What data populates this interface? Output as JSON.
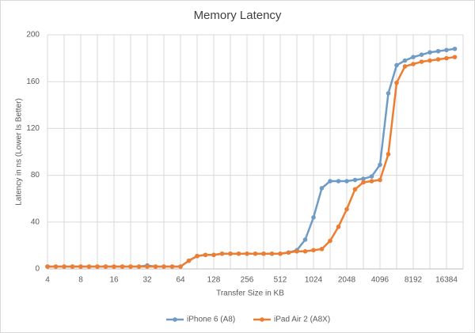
{
  "chart_data": {
    "type": "line",
    "title": "Memory Latency",
    "x_label": "Transfer Size in KB",
    "y_label": "Latency in ns (Lower Is Better)",
    "categories": [
      4,
      null,
      null,
      null,
      8,
      null,
      null,
      null,
      16,
      null,
      null,
      null,
      32,
      null,
      null,
      null,
      64,
      null,
      null,
      null,
      128,
      null,
      null,
      null,
      256,
      null,
      null,
      null,
      512,
      null,
      null,
      null,
      1024,
      null,
      null,
      null,
      2048,
      null,
      null,
      null,
      4096,
      null,
      null,
      null,
      8192,
      null,
      null,
      null,
      16384,
      null
    ],
    "ylim": [
      0,
      200
    ],
    "yticks": [
      0,
      40,
      80,
      120,
      160,
      200
    ],
    "grid": true,
    "legend": "bottom",
    "series": [
      {
        "name": "iPhone 6 (A8)",
        "color": "#6f9cc6",
        "values": [
          2,
          2,
          2,
          2,
          2,
          2,
          2,
          2,
          2,
          2,
          2,
          2,
          3,
          2,
          2,
          2,
          2,
          7,
          11,
          12,
          12,
          13,
          13,
          13,
          13,
          13,
          13,
          13,
          13,
          14,
          16,
          25,
          44,
          69,
          75,
          75,
          75,
          76,
          77,
          79,
          89,
          150,
          174,
          178,
          181,
          183,
          185,
          186,
          187,
          188
        ]
      },
      {
        "name": "iPad Air 2 (A8X)",
        "color": "#ed7d31",
        "values": [
          2,
          2,
          2,
          2,
          2,
          2,
          2,
          2,
          2,
          2,
          2,
          2,
          2,
          2,
          2,
          2,
          2,
          7,
          11,
          12,
          12,
          13,
          13,
          13,
          13,
          13,
          13,
          13,
          13,
          14,
          15,
          15,
          16,
          17,
          24,
          36,
          51,
          68,
          74,
          75,
          76,
          98,
          159,
          173,
          175,
          177,
          178,
          179,
          180,
          181
        ]
      }
    ]
  }
}
